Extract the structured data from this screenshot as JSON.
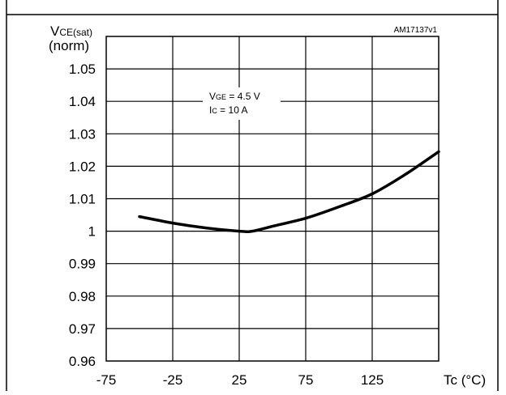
{
  "figure_id": "AM17137v1",
  "chart_data": {
    "type": "line",
    "ylabel_main": "V",
    "ylabel_sub": "CE(sat)",
    "ylabel_unit": "(norm)",
    "xlabel": "Tc (°C)",
    "xlim": [
      -75,
      175
    ],
    "ylim": [
      0.96,
      1.06
    ],
    "x_ticks": [
      -75,
      -25,
      25,
      75,
      125
    ],
    "x_tick_labels": [
      "-75",
      "-25",
      "25",
      "75",
      "125"
    ],
    "y_ticks": [
      0.96,
      0.97,
      0.98,
      0.99,
      1.0,
      1.01,
      1.02,
      1.03,
      1.04,
      1.05
    ],
    "y_tick_labels": [
      "0.96",
      "0.97",
      "0.98",
      "0.99",
      "1",
      "1.01",
      "1.02",
      "1.03",
      "1.04",
      "1.05"
    ],
    "grid": true,
    "annotation": {
      "line1_main": "V",
      "line1_sub": "GE",
      "line1_rest": " = 4.5 V",
      "line2_main": "I",
      "line2_sub": "C",
      "line2_rest": " = 10 A"
    },
    "series": [
      {
        "x": [
          -50,
          -25,
          0,
          25,
          35,
          50,
          75,
          100,
          125,
          150,
          175
        ],
        "y": [
          1.0045,
          1.0025,
          1.001,
          1.0,
          1.0,
          1.0015,
          1.004,
          1.0075,
          1.0115,
          1.0175,
          1.0245
        ]
      }
    ]
  }
}
